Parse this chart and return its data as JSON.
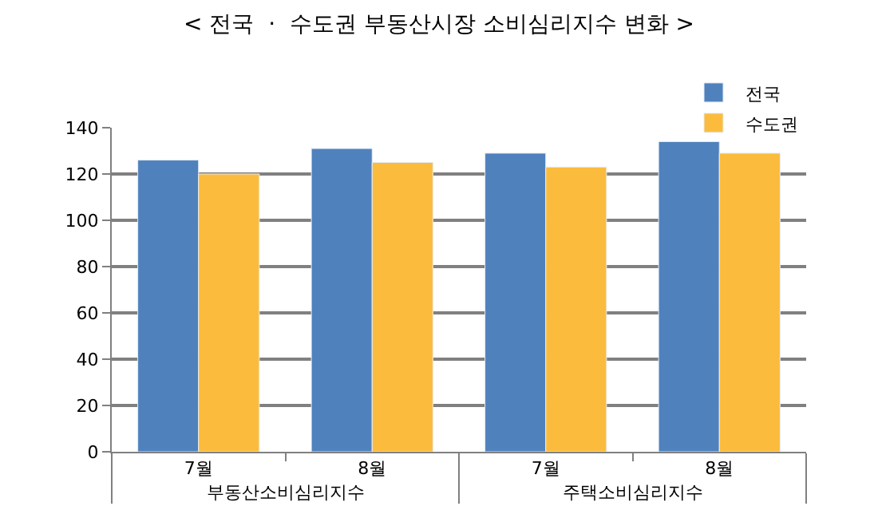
{
  "chart_data": {
    "type": "bar",
    "title": "< 전국  ·  수도권 부동산시장 소비심리지수 변화 >",
    "categories": [
      "7월",
      "8월",
      "7월",
      "8월"
    ],
    "series": [
      {
        "name": "전국",
        "color": "#4f81bd",
        "values": [
          126,
          131,
          129,
          134
        ]
      },
      {
        "name": "수도권",
        "color": "#fbbc3d",
        "values": [
          120,
          125,
          123,
          129
        ]
      }
    ],
    "annotations": [
      "부동산소비심리지수",
      "주택소비심리지수"
    ],
    "ylim": [
      0,
      140
    ],
    "yticks": [
      0,
      20,
      40,
      60,
      80,
      100,
      120,
      140
    ],
    "grid": "y",
    "legend": "top right"
  }
}
